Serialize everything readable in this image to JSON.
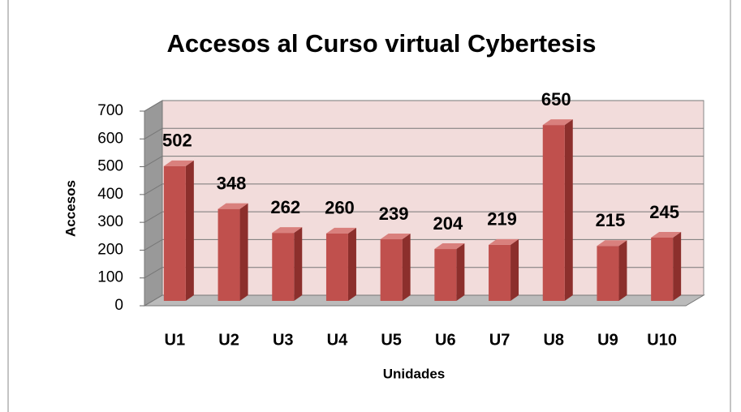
{
  "chart_data": {
    "type": "bar3d",
    "title": "Accesos al Curso virtual Cybertesis",
    "x_label": "Unidades",
    "y_label": "Accesos",
    "categories": [
      "U1",
      "U2",
      "U3",
      "U4",
      "U5",
      "U6",
      "U7",
      "U8",
      "U9",
      "U10"
    ],
    "values": [
      502,
      348,
      262,
      260,
      239,
      204,
      219,
      650,
      215,
      245
    ],
    "color": "#c0504d",
    "ylim": [
      0,
      700
    ],
    "yticks": [
      0,
      100,
      200,
      300,
      400,
      500,
      600,
      700
    ],
    "grid": true
  }
}
